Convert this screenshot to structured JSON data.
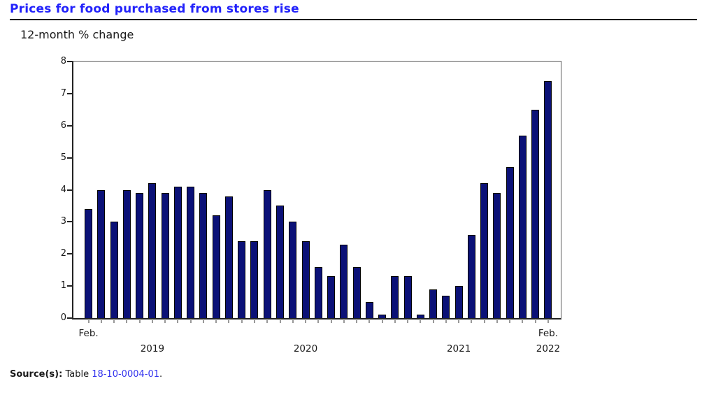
{
  "page": {
    "title": "Prices for food purchased from stores rise",
    "subtitle": "12-month % change",
    "source": {
      "prefix": "Source(s):",
      "text": " Table ",
      "link": "18-10-0004-01",
      "suffix": "."
    }
  },
  "colors": {
    "title_blue": "#2222fb",
    "link_blue": "#3333ee",
    "bar_fill": "#0b1177",
    "bar_outline": "#010101",
    "axis_dark": "#222222",
    "frame_gray": "#595959",
    "minor_tick_gray": "#999999"
  },
  "chart_data": {
    "type": "bar",
    "title": "Prices for food purchased from stores rise",
    "ylabel": "12-month % change",
    "ylim": [
      0,
      8
    ],
    "y_ticks": [
      0,
      1,
      2,
      3,
      4,
      5,
      6,
      7,
      8
    ],
    "grid": false,
    "legend": "none",
    "frequency": "monthly",
    "categories": [
      "Feb 2019",
      "Mar 2019",
      "Apr 2019",
      "May 2019",
      "Jun 2019",
      "Jul 2019",
      "Aug 2019",
      "Sep 2019",
      "Oct 2019",
      "Nov 2019",
      "Dec 2019",
      "Jan 2020",
      "Feb 2020",
      "Mar 2020",
      "Apr 2020",
      "May 2020",
      "Jun 2020",
      "Jul 2020",
      "Aug 2020",
      "Sep 2020",
      "Oct 2020",
      "Nov 2020",
      "Dec 2020",
      "Jan 2021",
      "Feb 2021",
      "Mar 2021",
      "Apr 2021",
      "May 2021",
      "Jun 2021",
      "Jul 2021",
      "Aug 2021",
      "Sep 2021",
      "Oct 2021",
      "Nov 2021",
      "Dec 2021",
      "Jan 2022",
      "Feb 2022"
    ],
    "values": [
      3.4,
      4.0,
      3.0,
      4.0,
      3.9,
      4.2,
      3.9,
      4.1,
      4.1,
      3.9,
      3.2,
      3.8,
      2.4,
      2.4,
      4.0,
      3.5,
      3.0,
      2.4,
      1.6,
      1.3,
      2.3,
      1.6,
      0.5,
      0.1,
      1.3,
      1.3,
      0.1,
      0.9,
      0.7,
      1.0,
      2.6,
      4.2,
      3.9,
      4.7,
      5.7,
      6.5,
      7.4
    ],
    "x_tick_labels": [
      {
        "text": "Feb.",
        "bar_index": 0,
        "row": 1
      },
      {
        "text": "2019",
        "bar_index": 5,
        "row": 2
      },
      {
        "text": "2020",
        "bar_index": 17,
        "row": 2
      },
      {
        "text": "2021",
        "bar_index": 29,
        "row": 2
      },
      {
        "text": "Feb.",
        "bar_index": 36,
        "row": 1
      },
      {
        "text": "2022",
        "bar_index": 36,
        "row": 2
      }
    ]
  }
}
